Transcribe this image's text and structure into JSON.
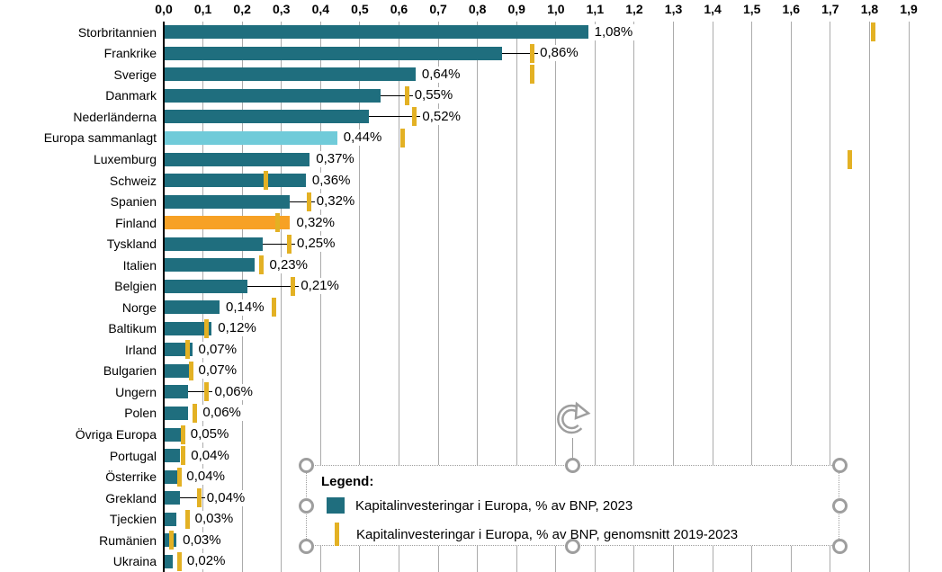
{
  "chart_data": {
    "type": "bar",
    "orientation": "horizontal",
    "grid": true,
    "xlim": [
      0,
      1.9
    ],
    "tick_step": 0.1,
    "tick_labels": [
      "0,0",
      "0,1",
      "0,2",
      "0,3",
      "0,4",
      "0,5",
      "0,6",
      "0,7",
      "0,8",
      "0,9",
      "1,0",
      "1,1",
      "1,2",
      "1,3",
      "1,4",
      "1,5",
      "1,6",
      "1,7",
      "1,8",
      "1,9"
    ],
    "categories": [
      "Storbritannien",
      "Frankrike",
      "Sverige",
      "Danmark",
      "Nederländerna",
      "Europa sammanlagt",
      "Luxemburg",
      "Schweiz",
      "Spanien",
      "Finland",
      "Tyskland",
      "Italien",
      "Belgien",
      "Norge",
      "Baltikum",
      "Irland",
      "Bulgarien",
      "Ungern",
      "Polen",
      "Övriga Europa",
      "Portugal",
      "Österrike",
      "Grekland",
      "Tjeckien",
      "Rumänien",
      "Ukraina"
    ],
    "series": [
      {
        "name": "Kapitalinvesteringar i Europa, % av BNP, 2023",
        "style": "bar",
        "color": "#1F6E7E",
        "values": [
          1.08,
          0.86,
          0.64,
          0.55,
          0.52,
          0.44,
          0.37,
          0.36,
          0.32,
          0.32,
          0.25,
          0.23,
          0.21,
          0.14,
          0.12,
          0.07,
          0.07,
          0.06,
          0.06,
          0.05,
          0.04,
          0.04,
          0.04,
          0.03,
          0.03,
          0.02
        ]
      },
      {
        "name": "Kapitalinvesteringar i Europa, % av BNP, genomsnitt 2019-2023",
        "style": "tick-marker",
        "color": "#E3B124",
        "values": [
          1.81,
          0.94,
          0.94,
          0.62,
          0.64,
          0.61,
          1.75,
          0.26,
          0.37,
          0.29,
          0.32,
          0.25,
          0.33,
          0.28,
          0.11,
          0.06,
          0.07,
          0.11,
          0.08,
          0.05,
          0.05,
          0.04,
          0.09,
          0.06,
          0.02,
          0.04
        ]
      }
    ],
    "value_labels": [
      "1,08%",
      "0,86%",
      "0,64%",
      "0,55%",
      "0,52%",
      "0,44%",
      "0,37%",
      "0,36%",
      "0,32%",
      "0,32%",
      "0,25%",
      "0,23%",
      "0,21%",
      "0,14%",
      "0,12%",
      "0,07%",
      "0,07%",
      "0,06%",
      "0,06%",
      "0,05%",
      "0,04%",
      "0,04%",
      "0,04%",
      "0,03%",
      "0,03%",
      "0,02%"
    ],
    "leader_line_rows": [
      "Frankrike",
      "Danmark",
      "Nederländerna",
      "Spanien",
      "Tyskland",
      "Belgien",
      "Ungern",
      "Grekland"
    ],
    "highlight_colors": {
      "Europa sammanlagt": "#70CBD9",
      "Finland": "#F7A125"
    }
  },
  "legend": {
    "title": "Legend:",
    "items": [
      {
        "swatch": "square",
        "color": "#1F6E7E",
        "label": "Kapitalinvesteringar i Europa, % av BNP, 2023"
      },
      {
        "swatch": "vertical-line",
        "color": "#E3B124",
        "label": "Kapitalinvesteringar i Europa, % av BNP, genomsnitt 2019-2023"
      }
    ]
  },
  "colors": {
    "bar_teal": "#1F6E7E",
    "bar_cyan_highlight": "#70CBD9",
    "bar_orange_highlight": "#F7A125",
    "average_marker_gold": "#E3B124",
    "gridline_gray": "#ABABAB",
    "selection_gray": "#9E9E9E"
  }
}
